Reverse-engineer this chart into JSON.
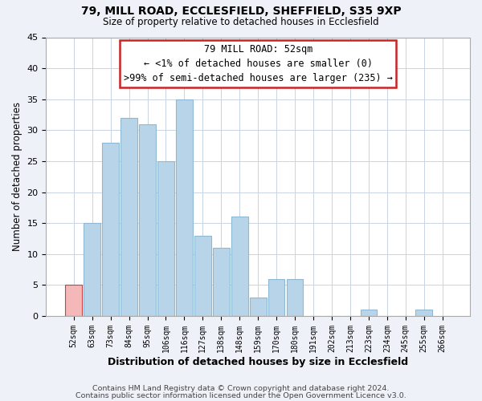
{
  "title1": "79, MILL ROAD, ECCLESFIELD, SHEFFIELD, S35 9XP",
  "title2": "Size of property relative to detached houses in Ecclesfield",
  "xlabel": "Distribution of detached houses by size in Ecclesfield",
  "ylabel": "Number of detached properties",
  "bar_labels": [
    "52sqm",
    "63sqm",
    "73sqm",
    "84sqm",
    "95sqm",
    "106sqm",
    "116sqm",
    "127sqm",
    "138sqm",
    "148sqm",
    "159sqm",
    "170sqm",
    "180sqm",
    "191sqm",
    "202sqm",
    "213sqm",
    "223sqm",
    "234sqm",
    "245sqm",
    "255sqm",
    "266sqm"
  ],
  "bar_values": [
    5,
    15,
    28,
    32,
    31,
    25,
    35,
    13,
    11,
    16,
    3,
    6,
    6,
    0,
    0,
    0,
    1,
    0,
    0,
    1,
    0
  ],
  "bar_color": "#b8d4e8",
  "bar_edge_color": "#8fb8d4",
  "highlight_bar_index": 0,
  "highlight_color": "#f4b8b8",
  "highlight_edge_color": "#c84040",
  "annotation_title": "79 MILL ROAD: 52sqm",
  "annotation_line1": "← <1% of detached houses are smaller (0)",
  "annotation_line2": ">99% of semi-detached houses are larger (235) →",
  "annotation_box_color": "#ffffff",
  "annotation_box_edge_color": "#cc2222",
  "ylim": [
    0,
    45
  ],
  "yticks": [
    0,
    5,
    10,
    15,
    20,
    25,
    30,
    35,
    40,
    45
  ],
  "footer1": "Contains HM Land Registry data © Crown copyright and database right 2024.",
  "footer2": "Contains public sector information licensed under the Open Government Licence v3.0.",
  "bg_color": "#eef2f8",
  "plot_bg_color": "#ffffff",
  "grid_color": "#c8d4e4"
}
